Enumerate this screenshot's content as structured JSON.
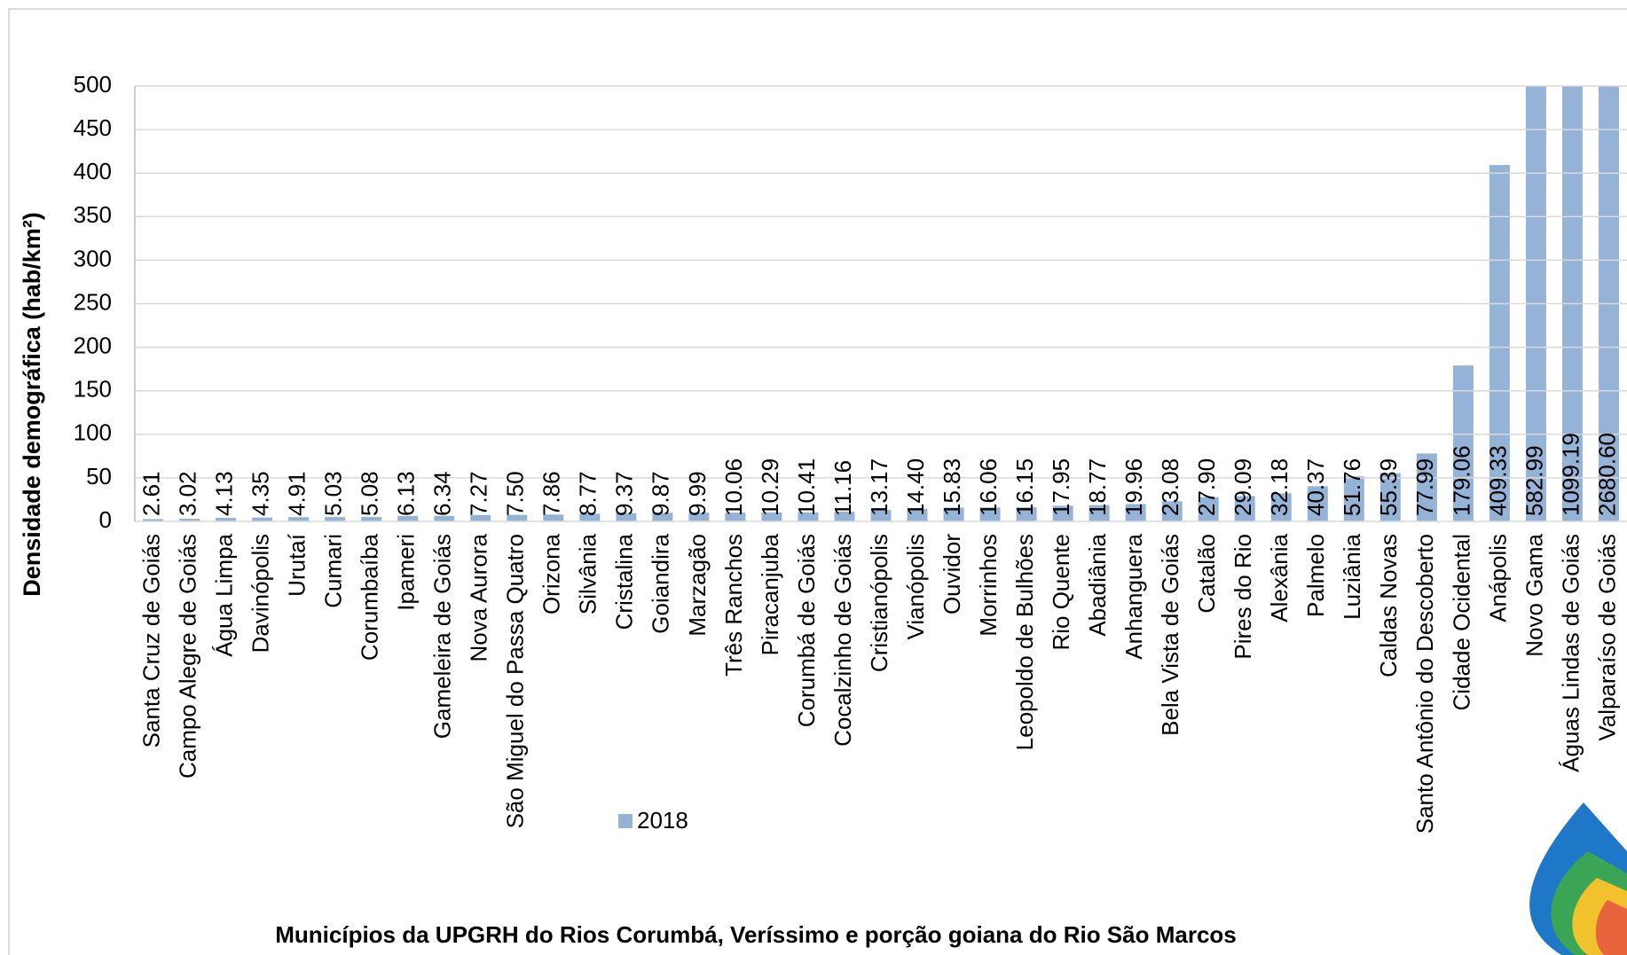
{
  "chart_data": {
    "type": "bar",
    "x_label": "Municípios da UPGRH do Rios Corumbá, Veríssimo e porção goiana do Rio São Marcos",
    "y_label": "Densidade demográfica (hab/km²)",
    "categories": [
      "Santa Cruz de Goiás",
      "Campo Alegre de Goiás",
      "Água Limpa",
      "Davinópolis",
      "Urutaí",
      "Cumari",
      "Corumbaíba",
      "Ipameri",
      "Gameleira de Goiás",
      "Nova Aurora",
      "São Miguel do Passa Quatro",
      "Orizona",
      "Silvânia",
      "Cristalina",
      "Goiandira",
      "Marzagão",
      "Três Ranchos",
      "Piracanjuba",
      "Corumbá de Goiás",
      "Cocalzinho de Goiás",
      "Cristianópolis",
      "Vianópolis",
      "Ouvidor",
      "Morrinhos",
      "Leopoldo de Bulhões",
      "Rio Quente",
      "Abadiânia",
      "Anhanguera",
      "Bela Vista de Goiás",
      "Catalão",
      "Pires do Rio",
      "Alexânia",
      "Palmelo",
      "Luziânia",
      "Caldas Novas",
      "Santo Antônio do Descoberto",
      "Cidade Ocidental",
      "Anápolis",
      "Novo Gama",
      "Águas Lindas de Goiás",
      "Valparaíso de Goiás"
    ],
    "series": [
      {
        "name": "2018",
        "color": "#95b3d7",
        "values": [
          2.61,
          3.02,
          4.13,
          4.35,
          4.91,
          5.03,
          5.08,
          6.13,
          6.34,
          7.27,
          7.5,
          7.86,
          8.77,
          9.37,
          9.87,
          9.99,
          10.06,
          10.29,
          10.41,
          11.16,
          13.17,
          14.4,
          15.83,
          16.06,
          16.15,
          17.95,
          18.77,
          19.96,
          23.08,
          27.9,
          29.09,
          32.18,
          40.37,
          51.76,
          55.39,
          77.99,
          179.06,
          409.33,
          582.99,
          1099.19,
          2680.6
        ],
        "value_labels": [
          "2.61",
          "3.02",
          "4.13",
          "4.35",
          "4.91",
          "5.03",
          "5.08",
          "6.13",
          "6.34",
          "7.27",
          "7.50",
          "7.86",
          "8.77",
          "9.37",
          "9.87",
          "9.99",
          "10.06",
          "10.29",
          "10.41",
          "11.16",
          "13.17",
          "14.40",
          "15.83",
          "16.06",
          "16.15",
          "17.95",
          "18.77",
          "19.96",
          "23.08",
          "27.90",
          "29.09",
          "32.18",
          "40.37",
          "51.76",
          "55.39",
          "77.99",
          "179.06",
          "409.33",
          "582.99",
          "1099.19",
          "2680.60"
        ]
      }
    ],
    "ylim": [
      0,
      500
    ],
    "yticks": [
      0,
      50,
      100,
      150,
      200,
      250,
      300,
      350,
      400,
      450,
      500
    ],
    "grid": true
  }
}
